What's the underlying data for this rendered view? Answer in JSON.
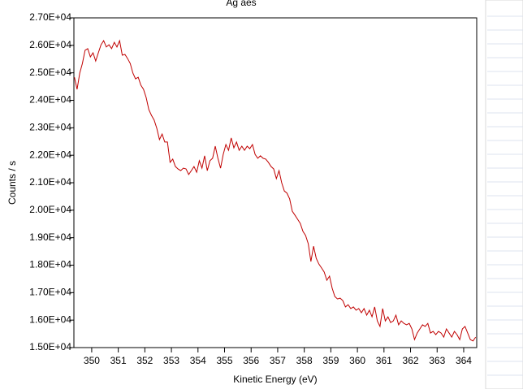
{
  "chart_data": {
    "type": "line",
    "title": "Ag aes",
    "xlabel": "Kinetic Energy (eV)",
    "ylabel": "Counts / s",
    "x": [
      349.35,
      349.45,
      349.55,
      349.65,
      349.75,
      349.85,
      349.95,
      350.05,
      350.15,
      350.25,
      350.35,
      350.45,
      350.55,
      350.65,
      350.75,
      350.85,
      350.95,
      351.05,
      351.15,
      351.25,
      351.35,
      351.45,
      351.55,
      351.65,
      351.75,
      351.85,
      351.95,
      352.05,
      352.15,
      352.25,
      352.35,
      352.45,
      352.55,
      352.65,
      352.75,
      352.85,
      352.95,
      353.05,
      353.15,
      353.25,
      353.35,
      353.45,
      353.55,
      353.65,
      353.75,
      353.85,
      353.95,
      354.05,
      354.15,
      354.25,
      354.35,
      354.45,
      354.55,
      354.65,
      354.75,
      354.85,
      354.95,
      355.05,
      355.15,
      355.25,
      355.35,
      355.45,
      355.55,
      355.65,
      355.75,
      355.85,
      355.95,
      356.05,
      356.15,
      356.25,
      356.35,
      356.45,
      356.55,
      356.65,
      356.75,
      356.85,
      356.95,
      357.05,
      357.15,
      357.25,
      357.35,
      357.45,
      357.55,
      357.65,
      357.75,
      357.85,
      357.95,
      358.05,
      358.15,
      358.25,
      358.35,
      358.45,
      358.55,
      358.65,
      358.75,
      358.85,
      358.95,
      359.05,
      359.15,
      359.25,
      359.35,
      359.45,
      359.55,
      359.65,
      359.75,
      359.85,
      359.95,
      360.05,
      360.15,
      360.25,
      360.35,
      360.45,
      360.55,
      360.65,
      360.75,
      360.85,
      360.95,
      361.05,
      361.15,
      361.25,
      361.35,
      361.45,
      361.55,
      361.65,
      361.75,
      361.85,
      361.95,
      362.05,
      362.15,
      362.25,
      362.35,
      362.45,
      362.55,
      362.65,
      362.75,
      362.85,
      362.95,
      363.05,
      363.15,
      363.25,
      363.35,
      363.45,
      363.55,
      363.65,
      363.75,
      363.85,
      363.95,
      364.05,
      364.15,
      364.25,
      364.35,
      364.45
    ],
    "series": [
      {
        "name": "Ag aes",
        "color": "#c00000",
        "values": [
          24840,
          24400,
          24990,
          25340,
          25820,
          25880,
          25580,
          25730,
          25430,
          25730,
          26020,
          26170,
          25940,
          26020,
          25880,
          26110,
          25940,
          26170,
          25640,
          25670,
          25520,
          25340,
          24990,
          24780,
          24840,
          24550,
          24400,
          24100,
          23660,
          23450,
          23280,
          22980,
          22570,
          22770,
          22480,
          22480,
          21740,
          21860,
          21590,
          21500,
          21440,
          21530,
          21500,
          21300,
          21440,
          21590,
          21380,
          21800,
          21530,
          21980,
          21440,
          21800,
          21890,
          22330,
          21890,
          21530,
          22030,
          22390,
          22180,
          22630,
          22270,
          22480,
          22180,
          22330,
          22180,
          22330,
          22240,
          22390,
          22030,
          21890,
          21980,
          21890,
          21860,
          21740,
          21590,
          21500,
          21150,
          21440,
          21000,
          20700,
          20620,
          20410,
          19960,
          19820,
          19670,
          19520,
          19230,
          19080,
          18780,
          18130,
          18690,
          18250,
          18040,
          17900,
          17750,
          17450,
          17600,
          17160,
          16860,
          16770,
          16800,
          16710,
          16480,
          16560,
          16420,
          16480,
          16360,
          16420,
          16270,
          16420,
          16180,
          16360,
          16120,
          16480,
          15970,
          15770,
          16420,
          15970,
          16120,
          15910,
          15970,
          16180,
          15830,
          15970,
          15880,
          15830,
          15880,
          15680,
          15290,
          15530,
          15680,
          15830,
          15770,
          15880,
          15530,
          15590,
          15470,
          15590,
          15530,
          15380,
          15680,
          15530,
          15380,
          15590,
          15470,
          15290,
          15680,
          15770,
          15530,
          15290,
          15240,
          15380
        ]
      }
    ],
    "xlim": [
      349.33,
      364.49
    ],
    "xticks": [
      350,
      351,
      352,
      353,
      354,
      355,
      356,
      357,
      358,
      359,
      360,
      361,
      362,
      363,
      364
    ],
    "ylim": [
      15000,
      27000
    ],
    "yticks": [
      {
        "value": 15000,
        "label": "1.50E+04"
      },
      {
        "value": 16000,
        "label": "1.60E+04"
      },
      {
        "value": 17000,
        "label": "1.70E+04"
      },
      {
        "value": 18000,
        "label": "1.80E+04"
      },
      {
        "value": 19000,
        "label": "1.90E+04"
      },
      {
        "value": 20000,
        "label": "2.00E+04"
      },
      {
        "value": 21000,
        "label": "2.10E+04"
      },
      {
        "value": 22000,
        "label": "2.20E+04"
      },
      {
        "value": 23000,
        "label": "2.30E+04"
      },
      {
        "value": 24000,
        "label": "2.40E+04"
      },
      {
        "value": 25000,
        "label": "2.50E+04"
      },
      {
        "value": 26000,
        "label": "2.60E+04"
      },
      {
        "value": 27000,
        "label": "2.70E+04"
      }
    ],
    "grid": false
  }
}
